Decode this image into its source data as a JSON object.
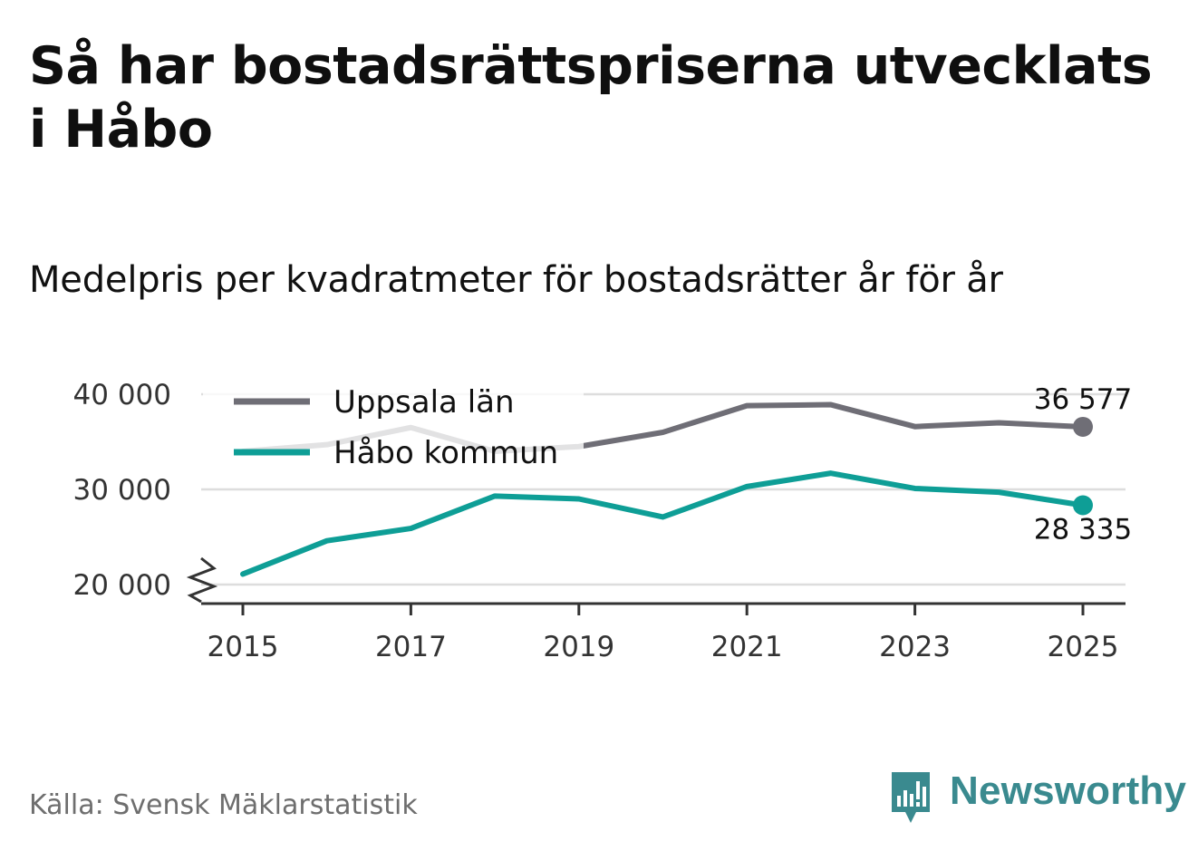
{
  "header": {
    "title": "Så har bostadsrättspriserna utvecklats i Håbo",
    "subtitle": "Medelpris per kvadratmeter för bostadsrätter år för år"
  },
  "footer": {
    "source": "Källa: Svensk Mäklarstatistik",
    "brand": "Newsworthy"
  },
  "colors": {
    "uppsala": "#6f6e76",
    "habo": "#0e9e96",
    "grid": "#dddddd",
    "axis": "#333333",
    "brand": "#3a8a8f"
  },
  "chart_data": {
    "type": "line",
    "title": "Medelpris per kvadratmeter för bostadsrätter år för år",
    "xlabel": "",
    "ylabel": "",
    "x": [
      2015,
      2016,
      2017,
      2018,
      2019,
      2020,
      2021,
      2022,
      2023,
      2024,
      2025
    ],
    "xticks": [
      2015,
      2017,
      2019,
      2021,
      2023,
      2025
    ],
    "xtick_labels": [
      "2015",
      "2017",
      "2019",
      "2021",
      "2023",
      "2025"
    ],
    "yticks": [
      20000,
      30000,
      40000
    ],
    "ytick_labels": [
      "20 000",
      "30 000",
      "40 000"
    ],
    "ylim": [
      18000,
      41000
    ],
    "axis_break": true,
    "grid": true,
    "legend_position": "top-left",
    "series": [
      {
        "name": "Uppsala län",
        "color": "#6f6e76",
        "values": [
          34000,
          34700,
          36500,
          34000,
          34500,
          36000,
          38800,
          38900,
          36600,
          37000,
          36577
        ],
        "end_label": "36 577",
        "end_label_position": "above"
      },
      {
        "name": "Håbo kommun",
        "color": "#0e9e96",
        "values": [
          21100,
          24600,
          25900,
          29300,
          29000,
          27100,
          30300,
          31700,
          30100,
          29700,
          28335
        ],
        "end_label": "28 335",
        "end_label_position": "below"
      }
    ]
  }
}
